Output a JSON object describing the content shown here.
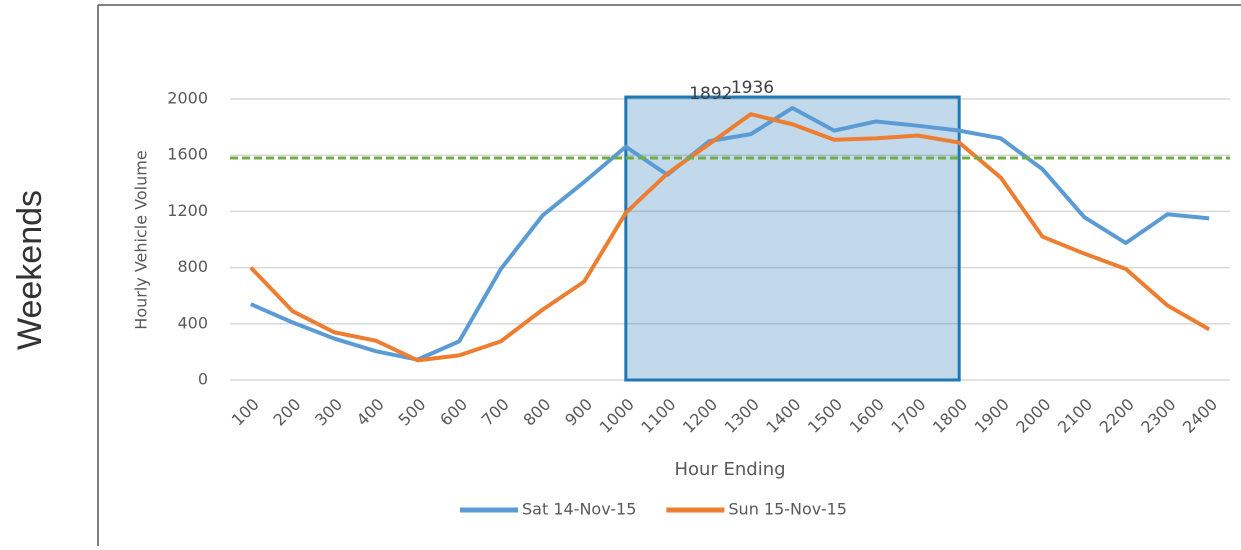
{
  "side_label": "Weekends",
  "chart_data": {
    "type": "line",
    "xlabel": "Hour Ending",
    "ylabel": "Hourly Vehicle Volume",
    "categories": [
      "100",
      "200",
      "300",
      "400",
      "500",
      "600",
      "700",
      "800",
      "900",
      "1000",
      "1100",
      "1200",
      "1300",
      "1400",
      "1500",
      "1600",
      "1700",
      "1800",
      "1900",
      "2000",
      "2100",
      "2200",
      "2300",
      "2400"
    ],
    "series": [
      {
        "name": "Sat 14-Nov-15",
        "color": "#5b9bd5",
        "values": [
          540,
          410,
          295,
          205,
          145,
          275,
          790,
          1170,
          1410,
          1660,
          1460,
          1700,
          1750,
          1936,
          1775,
          1840,
          1810,
          1775,
          1720,
          1500,
          1160,
          975,
          1180,
          1150
        ],
        "value_labels": [
          null,
          null,
          null,
          null,
          null,
          null,
          null,
          null,
          null,
          null,
          null,
          null,
          null,
          "1936",
          null,
          null,
          null,
          null,
          null,
          null,
          null,
          null,
          null,
          null
        ]
      },
      {
        "name": "Sun 15-Nov-15",
        "color": "#ed7d31",
        "values": [
          800,
          490,
          340,
          280,
          140,
          175,
          275,
          500,
          700,
          1190,
          1470,
          1680,
          1892,
          1820,
          1710,
          1720,
          1740,
          1690,
          1440,
          1020,
          900,
          790,
          530,
          360
        ],
        "value_labels": [
          null,
          null,
          null,
          null,
          null,
          null,
          null,
          null,
          null,
          null,
          null,
          null,
          "1892",
          null,
          null,
          null,
          null,
          null,
          null,
          null,
          null,
          null,
          null,
          null
        ]
      }
    ],
    "reference_line": {
      "value": 1580,
      "color": "#70ad47"
    },
    "highlight": {
      "x": [
        "1000",
        "1800"
      ],
      "y": [
        0,
        2014
      ],
      "color": "#1f77b4"
    },
    "ylim": [
      0,
      2000
    ],
    "yticks": [
      0,
      400,
      800,
      1200,
      1600,
      2000
    ],
    "grid": true,
    "legend": "bottom"
  }
}
